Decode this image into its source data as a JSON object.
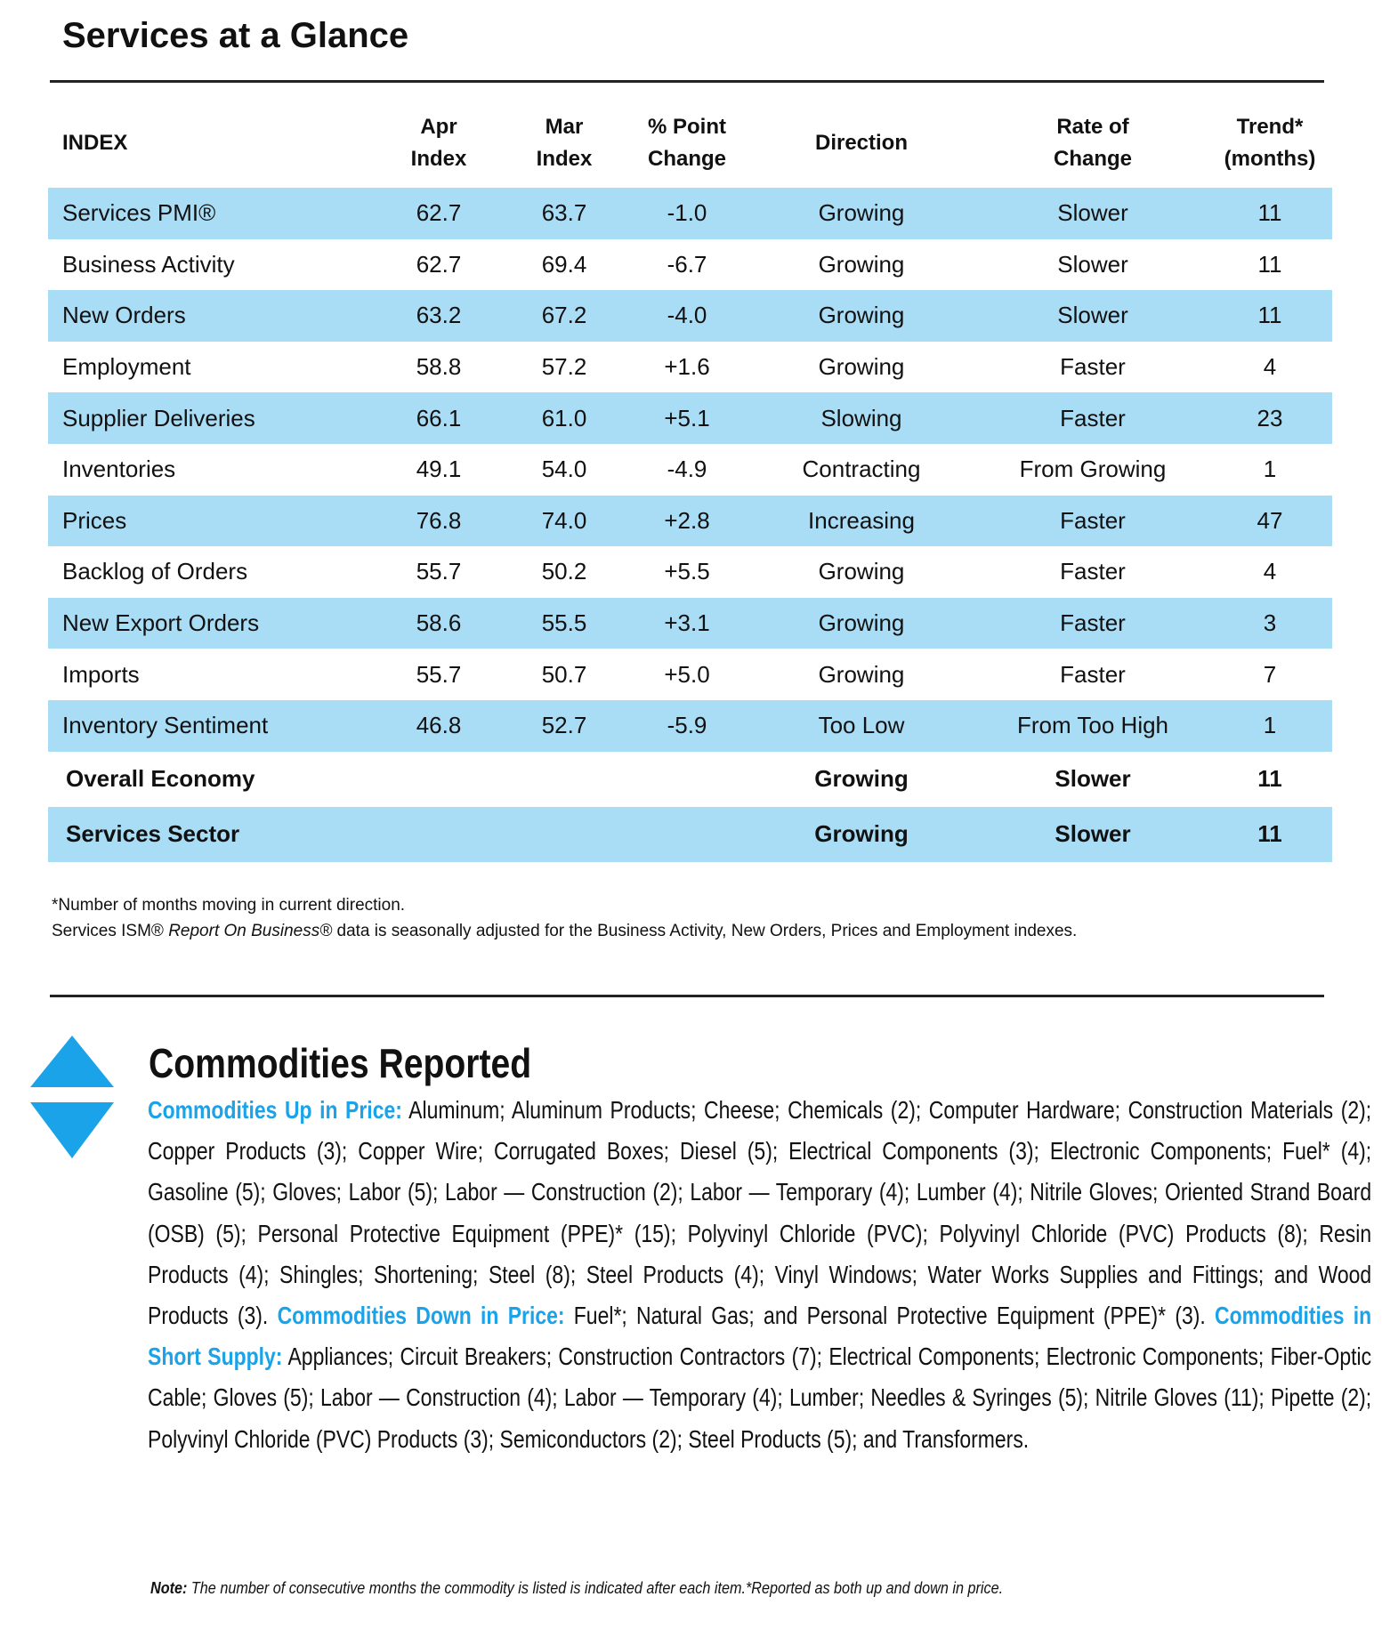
{
  "header": {
    "title": "Services at a Glance"
  },
  "table": {
    "columns": [
      {
        "key": "index",
        "lines": [
          "INDEX"
        ]
      },
      {
        "key": "apr",
        "lines": [
          "Apr",
          "Index"
        ]
      },
      {
        "key": "mar",
        "lines": [
          "Mar",
          "Index"
        ]
      },
      {
        "key": "change",
        "lines": [
          "% Point",
          "Change"
        ]
      },
      {
        "key": "direction",
        "lines": [
          "Direction"
        ]
      },
      {
        "key": "rate",
        "lines": [
          "Rate of",
          "Change"
        ]
      },
      {
        "key": "trend",
        "lines": [
          "Trend*",
          "(months)"
        ]
      }
    ],
    "rows": [
      {
        "index": "Services PMI®",
        "apr": "62.7",
        "mar": "63.7",
        "change": "-1.0",
        "direction": "Growing",
        "rate": "Slower",
        "trend": "11"
      },
      {
        "index": "Business Activity",
        "apr": "62.7",
        "mar": "69.4",
        "change": "-6.7",
        "direction": "Growing",
        "rate": "Slower",
        "trend": "11"
      },
      {
        "index": "New Orders",
        "apr": "63.2",
        "mar": "67.2",
        "change": "-4.0",
        "direction": "Growing",
        "rate": "Slower",
        "trend": "11"
      },
      {
        "index": "Employment",
        "apr": "58.8",
        "mar": "57.2",
        "change": "+1.6",
        "direction": "Growing",
        "rate": "Faster",
        "trend": "4"
      },
      {
        "index": "Supplier Deliveries",
        "apr": "66.1",
        "mar": "61.0",
        "change": "+5.1",
        "direction": "Slowing",
        "rate": "Faster",
        "trend": "23"
      },
      {
        "index": "Inventories",
        "apr": "49.1",
        "mar": "54.0",
        "change": "-4.9",
        "direction": "Contracting",
        "rate": "From Growing",
        "trend": "1"
      },
      {
        "index": "Prices",
        "apr": "76.8",
        "mar": "74.0",
        "change": "+2.8",
        "direction": "Increasing",
        "rate": "Faster",
        "trend": "47"
      },
      {
        "index": "Backlog of Orders",
        "apr": "55.7",
        "mar": "50.2",
        "change": "+5.5",
        "direction": "Growing",
        "rate": "Faster",
        "trend": "4"
      },
      {
        "index": "New Export Orders",
        "apr": "58.6",
        "mar": "55.5",
        "change": "+3.1",
        "direction": "Growing",
        "rate": "Faster",
        "trend": "3"
      },
      {
        "index": "Imports",
        "apr": "55.7",
        "mar": "50.7",
        "change": "+5.0",
        "direction": "Growing",
        "rate": "Faster",
        "trend": "7"
      },
      {
        "index": "Inventory Sentiment",
        "apr": "46.8",
        "mar": "52.7",
        "change": "-5.9",
        "direction": "Too Low",
        "rate": "From Too High",
        "trend": "1"
      }
    ],
    "summary_rows": [
      {
        "index": "Overall Economy",
        "direction": "Growing",
        "rate": "Slower",
        "trend": "11"
      },
      {
        "index": "Services Sector",
        "direction": "Growing",
        "rate": "Slower",
        "trend": "11"
      }
    ]
  },
  "footnotes": [
    [
      {
        "text": "*Number of months moving in current direction."
      }
    ],
    [
      {
        "text": "Services ISM® "
      },
      {
        "text": "Report On Business®",
        "italic": true
      },
      {
        "text": " data is seasonally adjusted for the Business Activity, New Orders, Prices and Employment indexes."
      }
    ]
  ],
  "commodities": {
    "title": "Commodities Reported",
    "sections": [
      {
        "label": "Commodities Up in Price:",
        "text": " Aluminum; Aluminum Products; Cheese; Chemicals (2); Computer Hardware; Construction Materials (2); Copper Products (3); Copper Wire; Corrugated Boxes; Diesel (5); Electrical Components (3); Electronic Components; Fuel* (4); Gasoline (5); Gloves; Labor (5); Labor — Construction (2); Labor — Temporary (4); Lumber (4); Nitrile Gloves; Oriented Strand Board (OSB) (5); Personal Protective Equipment (PPE)* (15); Polyvinyl Chloride (PVC); Polyvinyl Chloride (PVC) Products (8); Resin Products (4); Shingles; Shortening; Steel (8); Steel Products (4); Vinyl Windows; Water Works Supplies and Fittings; and Wood Products (3). "
      },
      {
        "label": "Commodities Down in Price:",
        "text": " Fuel*; Natural Gas; and Personal Protective Equipment (PPE)* (3). "
      },
      {
        "label": "Commodities in Short Supply:",
        "text": " Appliances; Circuit Breakers; Construction Contractors (7); Electrical Components; Electronic Components; Fiber-Optic Cable; Gloves (5); Labor — Construction (4); Labor — Temporary (4); Lumber; Needles & Syringes (5); Nitrile Gloves (11); Pipette (2); Polyvinyl Chloride (PVC) Products (3); Semiconductors (2); Steel Products (5); and Transformers."
      }
    ]
  },
  "note": {
    "label": "Note:",
    "text": " The number of consecutive months the commodity is listed is indicated after each item.*Reported as both up and down in price."
  }
}
